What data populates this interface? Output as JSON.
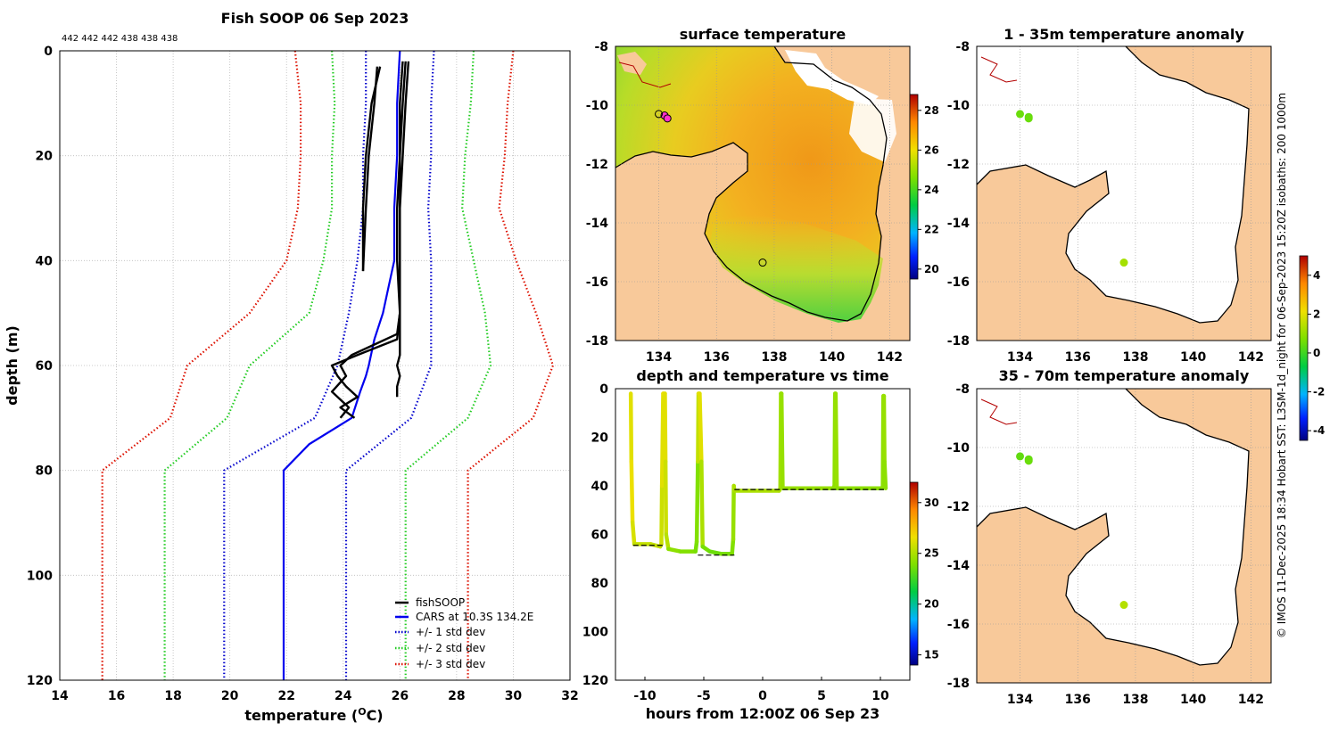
{
  "figure_title": "Fish SOOP 06 Sep 2023",
  "side_note": "© IMOS 11-Dec-2025 18:34 Hobart SST: L3SM-1d_night for 06-Sep-2023 15:20Z isobaths: 200  1000m",
  "colors": {
    "land": "#f8c99a",
    "axes": "#000000",
    "grid": "#bbbbbb",
    "profile": "#000000",
    "cars": "#0000ee",
    "sd1": "#0000cc",
    "sd2": "#22cc22",
    "sd3": "#dd1100",
    "coast_red": "#b30000",
    "sst_warm": "#f3a21e",
    "sst_mid": "#e9c21c",
    "sst_cool": "#a8d833"
  },
  "chart_data": [
    {
      "id": "profile",
      "type": "line",
      "title": "Fish SOOP 06 Sep 2023",
      "top_label": "442 442 442 438 438 438",
      "xlabel": "temperature (",
      "xlabel_sup": "O",
      "xlabel_end": "C)",
      "ylabel": "depth (m)",
      "xlim": [
        14,
        32
      ],
      "ylim": [
        120,
        0
      ],
      "xticks": [
        14,
        16,
        18,
        20,
        22,
        24,
        26,
        28,
        30,
        32
      ],
      "yticks": [
        0,
        20,
        40,
        60,
        80,
        100,
        120
      ],
      "grid": true,
      "legend_position": "bottom-right",
      "legend": [
        "fishSOOP",
        "CARS at 10.3S 134.2E",
        "+/- 1 std dev",
        "+/- 2 std dev",
        "+/- 3 std dev"
      ],
      "cars_mean": {
        "depth": [
          0,
          10,
          20,
          30,
          40,
          45,
          50,
          55,
          60,
          62,
          65,
          70,
          75,
          80,
          120
        ],
        "temp": [
          26.0,
          25.9,
          25.9,
          25.8,
          25.8,
          25.6,
          25.4,
          25.1,
          24.9,
          24.8,
          24.6,
          24.3,
          22.8,
          21.9,
          21.9
        ]
      },
      "sd_bounds": [
        {
          "name": "+/- 1 std dev",
          "depth": [
            0,
            10,
            20,
            30,
            40,
            50,
            60,
            70,
            80,
            120
          ],
          "minus": [
            24.8,
            24.8,
            24.7,
            24.7,
            24.5,
            24.2,
            23.8,
            23.0,
            19.8,
            19.8
          ],
          "plus": [
            27.2,
            27.1,
            27.1,
            27.0,
            27.1,
            27.1,
            27.1,
            26.4,
            24.1,
            24.1
          ]
        },
        {
          "name": "+/- 2 std dev",
          "depth": [
            0,
            10,
            20,
            30,
            40,
            50,
            60,
            70,
            80,
            120
          ],
          "minus": [
            23.6,
            23.7,
            23.6,
            23.6,
            23.3,
            22.8,
            20.7,
            19.9,
            17.7,
            17.7
          ],
          "plus": [
            28.6,
            28.5,
            28.3,
            28.2,
            28.6,
            29.0,
            29.2,
            28.4,
            26.2,
            26.2
          ]
        },
        {
          "name": "+/- 3 std dev",
          "depth": [
            0,
            10,
            20,
            30,
            40,
            50,
            60,
            70,
            80,
            120
          ],
          "minus": [
            22.3,
            22.5,
            22.5,
            22.4,
            22.0,
            20.7,
            18.5,
            17.9,
            15.5,
            15.5
          ],
          "plus": [
            30.0,
            29.8,
            29.7,
            29.5,
            30.1,
            30.8,
            31.4,
            30.7,
            28.4,
            28.4
          ]
        }
      ],
      "casts": [
        {
          "depth": [
            3,
            10,
            20,
            30,
            42
          ],
          "temp": [
            25.2,
            25.1,
            24.9,
            24.8,
            24.7
          ]
        },
        {
          "depth": [
            3,
            10,
            20,
            30,
            42
          ],
          "temp": [
            25.3,
            25.0,
            24.8,
            24.7,
            24.7
          ]
        },
        {
          "depth": [
            2,
            10,
            20,
            30,
            40,
            50,
            55,
            58,
            60,
            62,
            64,
            66,
            68,
            70
          ],
          "temp": [
            26.2,
            26.1,
            26.0,
            26.0,
            26.0,
            26.0,
            25.9,
            24.5,
            23.6,
            23.8,
            24.1,
            24.5,
            23.9,
            24.4
          ]
        },
        {
          "depth": [
            2,
            10,
            20,
            30,
            40,
            50,
            54,
            56,
            58,
            60,
            62,
            65,
            68,
            70
          ],
          "temp": [
            26.1,
            26.0,
            26.0,
            25.9,
            25.9,
            26.0,
            25.9,
            25.1,
            24.3,
            23.9,
            24.1,
            23.6,
            24.2,
            23.9
          ]
        },
        {
          "depth": [
            2,
            10,
            20,
            30,
            40,
            50,
            55,
            58,
            60,
            62,
            64,
            66
          ],
          "temp": [
            26.3,
            26.2,
            26.1,
            26.0,
            26.0,
            26.0,
            26.0,
            26.0,
            25.9,
            26.0,
            25.9,
            25.9
          ]
        }
      ]
    },
    {
      "id": "depth_time",
      "type": "scatter",
      "title": "depth and temperature vs time",
      "xlabel": "hours from 12:00Z 06 Sep 23",
      "xlim": [
        -12.5,
        12.5
      ],
      "ylim": [
        120,
        0
      ],
      "xticks": [
        -10,
        -5,
        0,
        5,
        10
      ],
      "yticks": [
        0,
        20,
        40,
        60,
        80,
        100,
        120
      ],
      "colorbar_ticks": [
        15,
        20,
        25,
        30
      ],
      "colorbar_range": [
        14,
        32
      ],
      "track": [
        {
          "t": [
            -11.2,
            -11.15,
            -11.05,
            -10.9,
            -9.5,
            -8.7,
            -8.6,
            -8.55,
            -8.45,
            -8.3,
            -8.25,
            -8.2,
            -8.0,
            -7.0,
            -5.7,
            -5.6,
            -5.5,
            -5.45,
            -5.35,
            -5.2,
            -5.1,
            -4.5,
            -3.5,
            -2.6,
            -2.5,
            -2.45,
            -2.4
          ],
          "d": [
            2,
            30,
            55,
            64,
            64,
            65,
            64,
            40,
            2,
            2,
            30,
            60,
            66,
            67,
            67,
            63,
            30,
            2,
            2,
            30,
            65,
            67,
            68,
            68,
            62,
            40,
            42
          ],
          "temp": [
            26,
            26.5,
            26.5,
            25.5,
            25.5,
            25.5,
            25.5,
            26,
            26.5,
            26.5,
            26,
            25.5,
            25,
            23.5,
            24.5,
            23,
            25,
            26,
            26.5,
            26,
            24,
            23.5,
            23.5,
            24,
            24,
            25,
            25
          ]
        },
        {
          "t": [
            -2.4,
            1.4,
            1.5,
            1.55,
            1.6,
            1.7,
            6.0,
            6.1,
            6.15,
            6.2,
            6.3,
            10.1,
            10.2,
            10.25,
            10.3,
            10.35,
            10.45
          ],
          "d": [
            42,
            42,
            41,
            2,
            2,
            41,
            41,
            40,
            2,
            2,
            41,
            41,
            41,
            3,
            3,
            30,
            41
          ],
          "temp": [
            25,
            25,
            25,
            24.5,
            24.5,
            24.5,
            24.5,
            24,
            24.5,
            24.5,
            24.5,
            24,
            24,
            24.5,
            24.5,
            24.5,
            24
          ]
        }
      ],
      "mean_depth_lines": [
        {
          "t": [
            -11.0,
            -8.5
          ],
          "d": 64.5
        },
        {
          "t": [
            -5.5,
            -2.4
          ],
          "d": 68.5
        },
        {
          "t": [
            -2.4,
            10.3
          ],
          "d": 41.5
        }
      ]
    },
    {
      "id": "sst",
      "type": "heatmap",
      "title": "surface temperature",
      "xlim": [
        132.5,
        142.7
      ],
      "ylim": [
        -18,
        -8
      ],
      "xticks": [
        134,
        136,
        138,
        140,
        142
      ],
      "yticks": [
        -8,
        -10,
        -12,
        -14,
        -16,
        -18
      ],
      "colorbar_ticks": [
        20,
        22,
        24,
        26,
        28
      ],
      "colorbar_range": [
        19.5,
        28.8
      ],
      "stations": [
        {
          "lon": 134.2,
          "lat": -10.35
        },
        {
          "lon": 134.3,
          "lat": -10.45
        },
        {
          "lon": 137.6,
          "lat": -15.35
        }
      ]
    },
    {
      "id": "anom_shallow",
      "type": "scatter",
      "title": "1 - 35m temperature anomaly",
      "xlim": [
        132.5,
        142.7
      ],
      "ylim": [
        -18,
        -8
      ],
      "xticks": [
        134,
        136,
        138,
        140,
        142
      ],
      "yticks": [
        -8,
        -10,
        -12,
        -14,
        -16,
        -18
      ],
      "points": [
        {
          "lon": 134.0,
          "lat": -10.3,
          "value": 0.5
        },
        {
          "lon": 134.3,
          "lat": -10.4,
          "value": 0.4
        },
        {
          "lon": 134.3,
          "lat": -10.45,
          "value": 0.5
        },
        {
          "lon": 137.6,
          "lat": -15.35,
          "value": 1.2
        }
      ]
    },
    {
      "id": "anom_deep",
      "type": "scatter",
      "title": "35 - 70m temperature anomaly",
      "xlim": [
        132.5,
        142.7
      ],
      "ylim": [
        -18,
        -8
      ],
      "xticks": [
        134,
        136,
        138,
        140,
        142
      ],
      "yticks": [
        -8,
        -10,
        -12,
        -14,
        -16,
        -18
      ],
      "colorbar_ticks": [
        -4,
        -2,
        0,
        2,
        4
      ],
      "colorbar_range": [
        -4.5,
        5
      ],
      "points": [
        {
          "lon": 134.0,
          "lat": -10.3,
          "value": 0.4
        },
        {
          "lon": 134.3,
          "lat": -10.4,
          "value": 0.4
        },
        {
          "lon": 134.3,
          "lat": -10.45,
          "value": 0.5
        },
        {
          "lon": 137.6,
          "lat": -15.35,
          "value": 1.4
        }
      ]
    }
  ]
}
